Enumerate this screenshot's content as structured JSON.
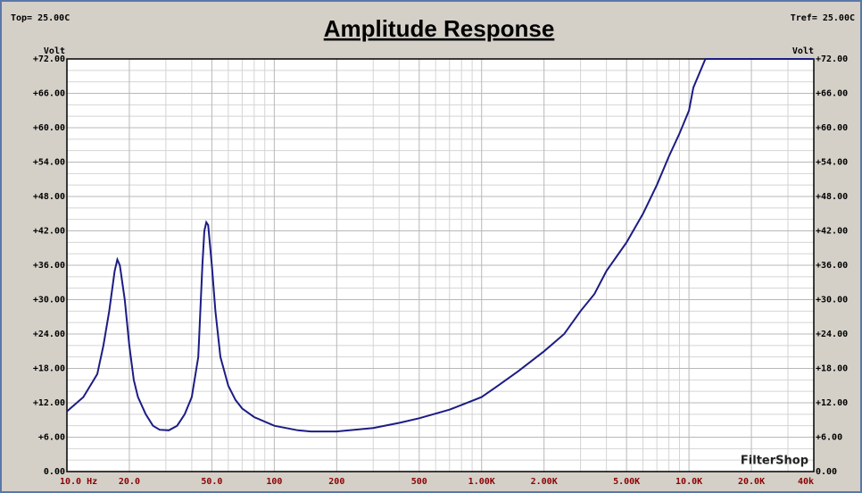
{
  "chart_data": {
    "type": "line",
    "title": "Amplitude Response",
    "top_label": "Top=  25.00C",
    "tref_label": "Tref=  25.00C",
    "ylabel": "Volt",
    "watermark": "FilterShop",
    "xscale": "log",
    "grid": true,
    "xlim": [
      10,
      40000
    ],
    "ylim": [
      0,
      72
    ],
    "xticks": [
      {
        "value": 10,
        "label": "10.0 Hz"
      },
      {
        "value": 20,
        "label": "20.0"
      },
      {
        "value": 50,
        "label": "50.0"
      },
      100,
      200,
      500,
      {
        "value": 1000,
        "label": "1.00K"
      },
      {
        "value": 2000,
        "label": "2.00K"
      },
      {
        "value": 5000,
        "label": "5.00K"
      },
      {
        "value": 10000,
        "label": "10.0K"
      },
      {
        "value": 20000,
        "label": "20.0K"
      },
      {
        "value": 40000,
        "label": "40k"
      }
    ],
    "x_minor_ticks": [
      30,
      40,
      60,
      70,
      80,
      90,
      300,
      400,
      600,
      700,
      800,
      900,
      3000,
      4000,
      6000,
      7000,
      8000,
      9000,
      30000
    ],
    "yticks": [
      {
        "value": 0,
        "label": "0.00"
      },
      {
        "value": 6,
        "label": "+6.00"
      },
      {
        "value": 12,
        "label": "+12.00"
      },
      {
        "value": 18,
        "label": "+18.00"
      },
      {
        "value": 24,
        "label": "+24.00"
      },
      {
        "value": 30,
        "label": "+30.00"
      },
      {
        "value": 36,
        "label": "+36.00"
      },
      {
        "value": 42,
        "label": "+42.00"
      },
      {
        "value": 48,
        "label": "+48.00"
      },
      {
        "value": 54,
        "label": "+54.00"
      },
      {
        "value": 60,
        "label": "+60.00"
      },
      {
        "value": 66,
        "label": "+66.00"
      },
      {
        "value": 72,
        "label": "+72.00"
      }
    ],
    "y_minor_ticks": [
      2,
      4,
      8,
      10,
      14,
      16,
      20,
      22,
      26,
      28,
      32,
      34,
      38,
      40,
      44,
      46,
      50,
      52,
      56,
      58,
      62,
      64,
      68,
      70
    ],
    "x": [
      10,
      12,
      14,
      15,
      16,
      17,
      17.5,
      18,
      19,
      20,
      21,
      22,
      24,
      26,
      28,
      31,
      34,
      37,
      40,
      43,
      45,
      46,
      47,
      48,
      50,
      52,
      55,
      60,
      65,
      70,
      80,
      100,
      130,
      150,
      200,
      300,
      400,
      500,
      700,
      1000,
      1200,
      1500,
      2000,
      2500,
      3000,
      3500,
      4000,
      5000,
      6000,
      7000,
      8000,
      9000,
      10000,
      10500,
      12000,
      40000
    ],
    "series": [
      {
        "name": "Volt",
        "color": "#1c1c84",
        "values": [
          10.5,
          13,
          17,
          22,
          28,
          35,
          37,
          36,
          30,
          22,
          16,
          13,
          10,
          8,
          7.3,
          7.2,
          8,
          10,
          13,
          20,
          36,
          42,
          43.5,
          43,
          36,
          28,
          20,
          15,
          12.5,
          11,
          9.5,
          8,
          7.2,
          7,
          7,
          7.6,
          8.5,
          9.3,
          10.8,
          13,
          15,
          17.5,
          21,
          24,
          28,
          31,
          35,
          40,
          45,
          50,
          55,
          59,
          63,
          67,
          72,
          72
        ]
      }
    ]
  }
}
